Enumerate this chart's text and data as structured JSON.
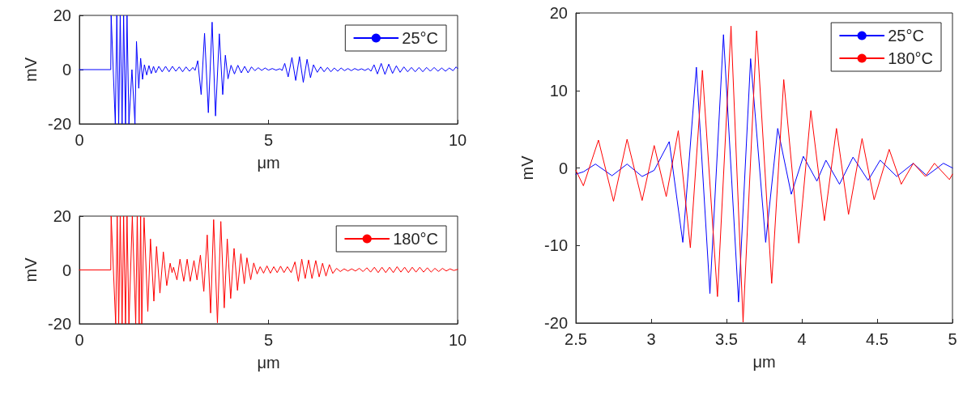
{
  "chart_data": [
    {
      "type": "line",
      "xlabel": "μm",
      "ylabel": "mV",
      "xlim": [
        0,
        10
      ],
      "ylim": [
        -20,
        20
      ],
      "xticks": [
        0,
        5,
        10
      ],
      "yticks": [
        -20,
        0,
        20
      ],
      "grid": false,
      "legend": "top right",
      "marker": "none",
      "line_style": "solid",
      "series": [
        {
          "name": "25°C",
          "color": "#0000ff",
          "x": [
            0,
            0.83,
            0.84,
            0.95,
            0.99,
            1.04,
            1.08,
            1.13,
            1.17,
            1.22,
            1.26,
            1.31,
            1.39,
            1.47,
            1.51,
            1.57,
            1.62,
            1.67,
            1.72,
            1.78,
            1.84,
            1.9,
            1.96,
            2.02,
            2.1,
            2.19,
            2.28,
            2.37,
            2.46,
            2.55,
            2.64,
            2.73,
            2.82,
            2.91,
            3.0,
            3.06,
            3.13,
            3.22,
            3.31,
            3.41,
            3.51,
            3.6,
            3.7,
            3.79,
            3.86,
            3.93,
            4.01,
            4.1,
            4.19,
            4.28,
            4.37,
            4.46,
            4.55,
            4.64,
            4.73,
            4.82,
            4.91,
            5.0,
            5.1,
            5.2,
            5.3,
            5.36,
            5.43,
            5.52,
            5.62,
            5.72,
            5.82,
            5.92,
            6.02,
            6.11,
            6.19,
            6.29,
            6.38,
            6.47,
            6.56,
            6.65,
            6.74,
            6.83,
            6.92,
            7.01,
            7.1,
            7.19,
            7.28,
            7.37,
            7.46,
            7.55,
            7.64,
            7.71,
            7.79,
            7.88,
            7.98,
            8.08,
            8.18,
            8.28,
            8.38,
            8.48,
            8.58,
            8.68,
            8.78,
            8.88,
            8.98,
            9.08,
            9.18,
            9.28,
            9.38,
            9.48,
            9.58,
            9.68,
            9.78,
            9.88,
            9.96,
            10
          ],
          "values": [
            0,
            0,
            20,
            -20,
            20,
            -20,
            20,
            -20,
            20,
            -20,
            20,
            -20,
            0,
            -20,
            10.4,
            -6.9,
            4.2,
            -3.6,
            1.8,
            -2,
            1.5,
            -1.5,
            1.2,
            -1.2,
            1.2,
            -0.8,
            1.2,
            -0.8,
            1.2,
            -0.6,
            1.0,
            -0.8,
            1.0,
            -0.6,
            0.8,
            -0.3,
            3.3,
            -9.2,
            13.4,
            -15.9,
            17.5,
            -17.1,
            13.2,
            -9.2,
            5.3,
            -3.4,
            1.6,
            -1.6,
            1.6,
            -1.2,
            1.2,
            -1.2,
            1.0,
            -0.4,
            0.7,
            -0.3,
            0.6,
            -0.2,
            0.4,
            -0.2,
            0.3,
            -0.3,
            2.3,
            -2.7,
            4.5,
            -4.0,
            4.8,
            -4.7,
            3.8,
            -3.0,
            1.8,
            -1.0,
            1.0,
            -0.8,
            0.8,
            -0.8,
            0.6,
            -0.6,
            0.6,
            -0.4,
            0.4,
            -0.4,
            0.4,
            -0.2,
            0.3,
            -0.3,
            0.4,
            -0.6,
            1.8,
            -1.6,
            2.3,
            -1.8,
            2.0,
            -1.4,
            1.4,
            -1.0,
            1.0,
            -0.8,
            0.8,
            -0.8,
            0.8,
            -0.8,
            0.8,
            -0.6,
            0.8,
            -0.6,
            0.6,
            -0.6,
            0.6,
            -0.4,
            1.0,
            0.4
          ]
        }
      ]
    },
    {
      "type": "line",
      "xlabel": "μm",
      "ylabel": "mV",
      "xlim": [
        0,
        10
      ],
      "ylim": [
        -20,
        20
      ],
      "xticks": [
        0,
        5,
        10
      ],
      "yticks": [
        -20,
        0,
        20
      ],
      "grid": false,
      "legend": "top right",
      "marker": "none",
      "line_style": "solid",
      "series": [
        {
          "name": "180°C",
          "color": "#ff0000",
          "x": [
            0,
            0.83,
            0.84,
            0.96,
            1.0,
            1.04,
            1.08,
            1.13,
            1.17,
            1.22,
            1.26,
            1.31,
            1.4,
            1.49,
            1.53,
            1.58,
            1.62,
            1.65,
            1.71,
            1.81,
            1.88,
            1.97,
            2.04,
            2.13,
            2.22,
            2.31,
            2.4,
            2.45,
            2.49,
            2.58,
            2.66,
            2.76,
            2.85,
            2.93,
            3.03,
            3.11,
            3.2,
            3.29,
            3.38,
            3.47,
            3.55,
            3.65,
            3.74,
            3.83,
            3.91,
            4.0,
            4.09,
            4.18,
            4.27,
            4.36,
            4.43,
            4.53,
            4.61,
            4.7,
            4.78,
            4.87,
            4.96,
            5.05,
            5.14,
            5.23,
            5.32,
            5.41,
            5.5,
            5.6,
            5.7,
            5.79,
            5.88,
            5.97,
            6.06,
            6.15,
            6.25,
            6.34,
            6.43,
            6.52,
            6.61,
            6.7,
            6.8,
            6.9,
            7.0,
            7.1,
            7.2,
            7.3,
            7.4,
            7.5,
            7.6,
            7.7,
            7.8,
            7.9,
            8.0,
            8.1,
            8.2,
            8.3,
            8.4,
            8.5,
            8.6,
            8.7,
            8.8,
            8.9,
            9.0,
            9.1,
            9.2,
            9.3,
            9.4,
            9.5,
            9.6,
            9.7,
            9.8,
            9.9,
            10
          ],
          "values": [
            0,
            0,
            20,
            -20,
            20,
            -20,
            20,
            -20,
            20,
            -20,
            20,
            -20,
            20,
            -20,
            20,
            -20,
            20,
            -20,
            19.5,
            -15.4,
            11.5,
            -11.6,
            8.7,
            -8.6,
            6.7,
            -5.8,
            2.5,
            -1.0,
            1.0,
            -3.7,
            4.0,
            -4.2,
            4.0,
            -4.2,
            3.5,
            -3.7,
            5.5,
            -8.0,
            13.0,
            -16.0,
            18.7,
            -19.6,
            18.0,
            -14.1,
            11.5,
            -10.6,
            8.0,
            -7.6,
            6.0,
            -5.1,
            4.5,
            -3.6,
            2.6,
            -1.5,
            1.2,
            -1.2,
            1.5,
            -1.2,
            1.2,
            -1.0,
            1.4,
            -1.0,
            1.2,
            -1.0,
            3.0,
            -4.2,
            4.0,
            -3.2,
            3.7,
            -3.2,
            3.5,
            -2.6,
            2.5,
            -2.3,
            2.0,
            -1.3,
            0.6,
            -0.6,
            0.4,
            -0.4,
            0.4,
            -0.4,
            0.6,
            -0.6,
            0.8,
            -0.8,
            1.0,
            -1.0,
            1.0,
            -1.0,
            1.0,
            -1.0,
            1.2,
            -0.8,
            1.0,
            -1.0,
            1.0,
            -0.8,
            1.0,
            -0.8,
            0.8,
            -0.8,
            0.6,
            -0.6,
            0.6,
            -0.4,
            0.4,
            -0.2,
            0.2
          ]
        }
      ]
    },
    {
      "type": "line",
      "xlabel": "μm",
      "ylabel": "mV",
      "xlim": [
        2.5,
        5
      ],
      "ylim": [
        -20,
        20
      ],
      "xticks": [
        2.5,
        3,
        3.5,
        4,
        4.5,
        5
      ],
      "yticks": [
        -20,
        -10,
        0,
        10,
        20
      ],
      "grid": false,
      "legend": "top right",
      "marker": "none",
      "line_style": "solid",
      "series": [
        {
          "name": "25°C",
          "color": "#0000ff",
          "x": [
            2.5,
            2.55,
            2.63,
            2.74,
            2.84,
            2.94,
            3.02,
            3.12,
            3.21,
            3.3,
            3.39,
            3.48,
            3.58,
            3.66,
            3.76,
            3.84,
            3.93,
            4.01,
            4.1,
            4.16,
            4.25,
            4.34,
            4.44,
            4.52,
            4.63,
            4.74,
            4.83,
            4.94,
            5
          ],
          "values": [
            -0.8,
            -0.5,
            0.5,
            -1.0,
            0.5,
            -1.1,
            -0.3,
            3.4,
            -9.6,
            13.0,
            -16.2,
            17.2,
            -17.3,
            14.1,
            -9.6,
            5.1,
            -3.4,
            1.5,
            -1.7,
            1.0,
            -2.1,
            1.4,
            -1.6,
            1.0,
            -1.1,
            0.6,
            -1.0,
            0.6,
            0
          ]
        },
        {
          "name": "180°C",
          "color": "#ff0000",
          "x": [
            2.5,
            2.55,
            2.65,
            2.75,
            2.84,
            2.94,
            3.02,
            3.1,
            3.18,
            3.26,
            3.34,
            3.44,
            3.53,
            3.61,
            3.7,
            3.8,
            3.88,
            3.98,
            4.06,
            4.15,
            4.23,
            4.31,
            4.4,
            4.48,
            4.58,
            4.66,
            4.74,
            4.82,
            4.88,
            4.98,
            5
          ],
          "values": [
            -0.3,
            -2.3,
            3.6,
            -4.3,
            3.7,
            -4.2,
            2.9,
            -3.7,
            4.8,
            -10.3,
            12.6,
            -16.6,
            18.3,
            -19.9,
            17.7,
            -14.9,
            11.4,
            -9.7,
            7.4,
            -6.8,
            5.1,
            -6.0,
            3.8,
            -4.1,
            2.4,
            -2.1,
            0.6,
            -1.1,
            0.6,
            -1.5,
            -0.8
          ]
        }
      ]
    }
  ]
}
